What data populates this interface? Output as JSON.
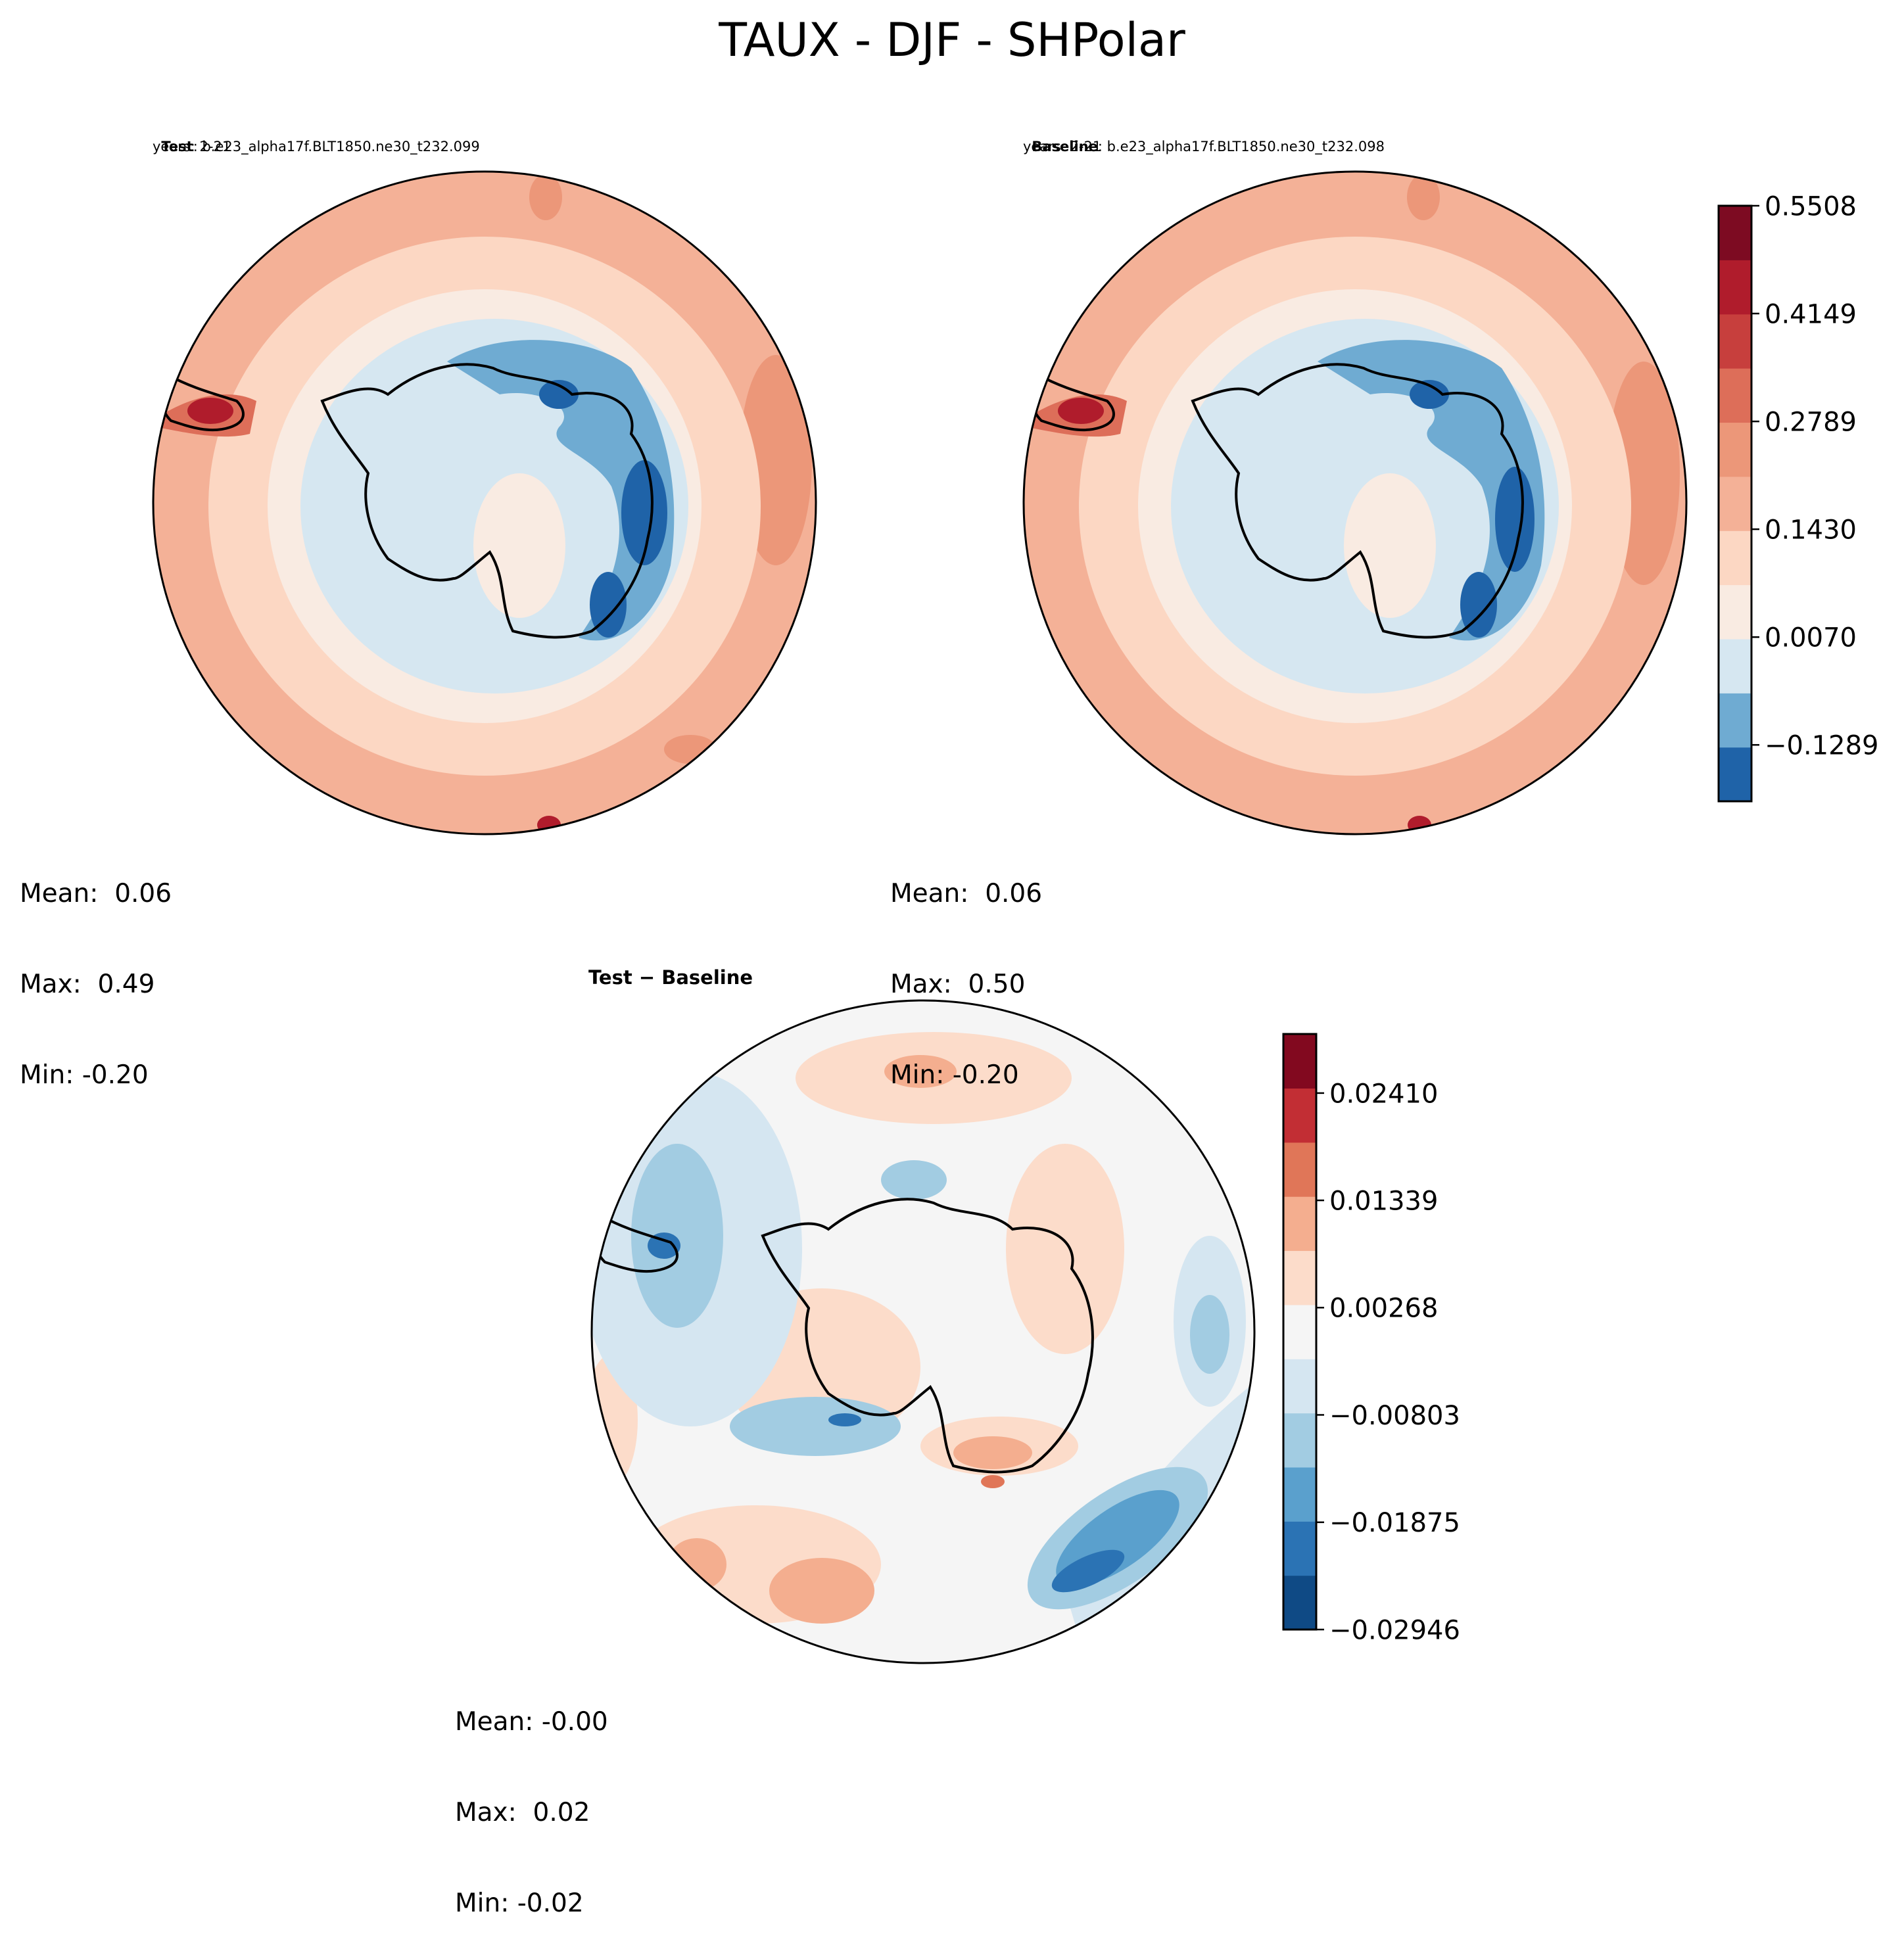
{
  "chart_data": [
    {
      "type": "heatmap",
      "title": "TAUX - DJF - SHPolar",
      "panel": "test",
      "label": "Test",
      "case": "b.e23_alpha17f.BLT1850.ne30_t232.099",
      "years": "years: 2-21",
      "stats": {
        "mean": "Mean:  0.06",
        "max": "Max:  0.49",
        "min": "Min: -0.20"
      }
    },
    {
      "type": "heatmap",
      "panel": "baseline",
      "label": "Baseline",
      "case": "b.e23_alpha17f.BLT1850.ne30_t232.098",
      "years": "years: 2-21",
      "stats": {
        "mean": "Mean:  0.06",
        "max": "Max:  0.50",
        "min": "Min: -0.20"
      },
      "colorbar": {
        "ticks": [
          "0.5508",
          "0.4149",
          "0.2789",
          "0.1430",
          "0.0070",
          "−0.1289"
        ],
        "tick_values": [
          0.5508,
          0.4149,
          0.2789,
          0.143,
          0.007,
          -0.1289
        ],
        "range": [
          -0.2,
          0.5508
        ]
      }
    },
    {
      "type": "heatmap",
      "panel": "difference",
      "title": "Test − Baseline",
      "stats": {
        "mean": "Mean: -0.00",
        "max": "Max:  0.02",
        "min": "Min: -0.02"
      },
      "colorbar": {
        "ticks": [
          "0.02410",
          "0.01339",
          "0.00268",
          "−0.00803",
          "−0.01875",
          "−0.02946"
        ],
        "tick_values": [
          0.0241,
          0.01339,
          0.00268,
          -0.00803,
          -0.01875,
          -0.02946
        ],
        "range": [
          -0.02946,
          0.03
        ]
      }
    }
  ],
  "colors": {
    "main_levels": [
      "#1f63a8",
      "#6fabd2",
      "#d6e7f1",
      "#f9ebe2",
      "#fcd7c3",
      "#f4b197",
      "#ec9779",
      "#dd6e59",
      "#c73f3d",
      "#b01c2c",
      "#7d0b22"
    ],
    "diff_levels": [
      "#0f4a85",
      "#2b73b4",
      "#5aa0cd",
      "#a2cce2",
      "#d5e6f1",
      "#f5f5f5",
      "#fcdcca",
      "#f4ae8f",
      "#e07658",
      "#c22e34",
      "#82091f"
    ]
  }
}
